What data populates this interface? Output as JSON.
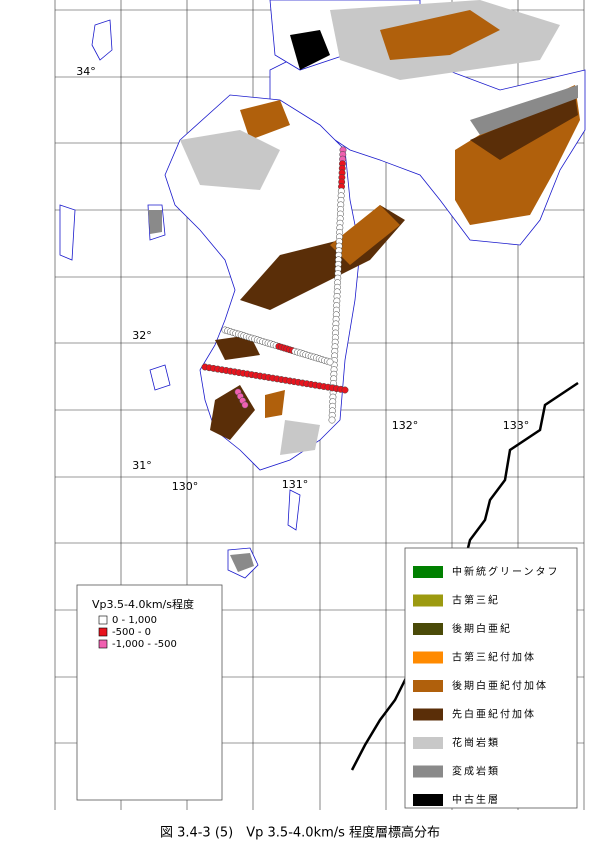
{
  "map": {
    "graticule_labels": [
      "34°",
      "32°",
      "31°",
      "130°",
      "131°",
      "132°",
      "133°"
    ],
    "point_legend": {
      "title": "Vp3.5-4.0km/s程度",
      "items": [
        {
          "label": "0 - 1,000",
          "color": "#ffffff"
        },
        {
          "label": "-500 - 0",
          "color": "#e8141e"
        },
        {
          "label": "-1,000 - -500",
          "color": "#f060b0"
        }
      ]
    },
    "geology_legend": [
      {
        "label": "中新統グリーンタフ",
        "color": "#008000"
      },
      {
        "label": "古第三紀",
        "color": "#9c9a10"
      },
      {
        "label": "後期白亜紀",
        "color": "#4a4a08"
      },
      {
        "label": "古第三紀付加体",
        "color": "#ff8a00"
      },
      {
        "label": "後期白亜紀付加体",
        "color": "#b0600c"
      },
      {
        "label": "先白亜紀付加体",
        "color": "#5a2e08"
      },
      {
        "label": "花崗岩類",
        "color": "#c8c8c8"
      },
      {
        "label": "変成岩類",
        "color": "#8a8a8a"
      },
      {
        "label": "中古生層",
        "color": "#000000"
      }
    ],
    "caption": "図 3.4-3 (5)　Vp 3.5-4.0km/s 程度層標高分布"
  }
}
